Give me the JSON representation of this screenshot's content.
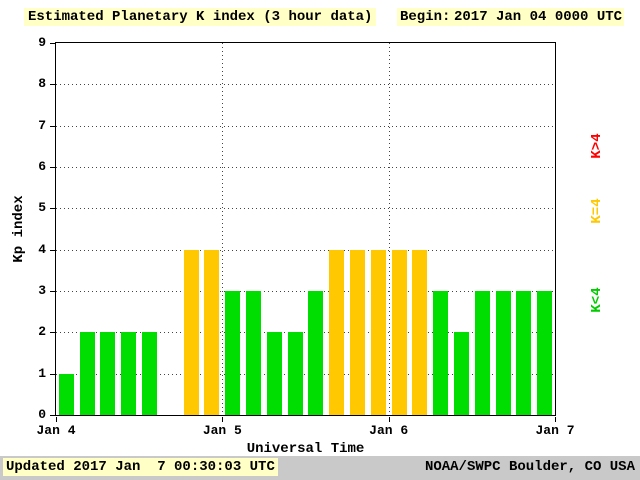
{
  "header": {
    "title": "Estimated Planetary K index (3 hour data)",
    "begin_label": "Begin:",
    "begin_value": "2017 Jan 04 0000 UTC"
  },
  "chart_data": {
    "type": "bar",
    "title": "Estimated Planetary K index (3 hour data)",
    "begin": "2017 Jan 04 0000 UTC",
    "xlabel": "Universal Time",
    "ylabel": "Kp index",
    "ylim": [
      0,
      9
    ],
    "y_ticks": [
      0,
      1,
      2,
      3,
      4,
      5,
      6,
      7,
      8,
      9
    ],
    "x_tick_labels": [
      "Jan 4",
      "Jan 5",
      "Jan 6",
      "Jan 7"
    ],
    "bars_per_day": 8,
    "values": [
      1,
      2,
      2,
      2,
      2,
      0,
      4,
      4,
      3,
      3,
      2,
      2,
      3,
      4,
      4,
      4,
      4,
      4,
      3,
      2,
      3,
      3,
      3,
      3
    ],
    "grid": "dotted horizontal at each Kp level, dotted vertical at day boundaries",
    "bar_color_rule": {
      "lt4": "#00dd00",
      "eq4": "#ffc800",
      "gt4": "#ff0000"
    },
    "legend": [
      {
        "label": "K>4",
        "color": "#ff0000"
      },
      {
        "label": "K=4",
        "color": "#ffc800"
      },
      {
        "label": "K<4",
        "color": "#00cc00"
      }
    ],
    "legend_position": "right, rotated vertical"
  },
  "footer": {
    "updated": "Updated 2017 Jan  7 00:30:03 UTC",
    "source": "NOAA/SWPC Boulder, CO USA"
  },
  "colors": {
    "highlight_bg": "#ffffc6",
    "footer_bg": "#c9c9c9",
    "plot_border": "#000000",
    "background": "#ffffff"
  }
}
